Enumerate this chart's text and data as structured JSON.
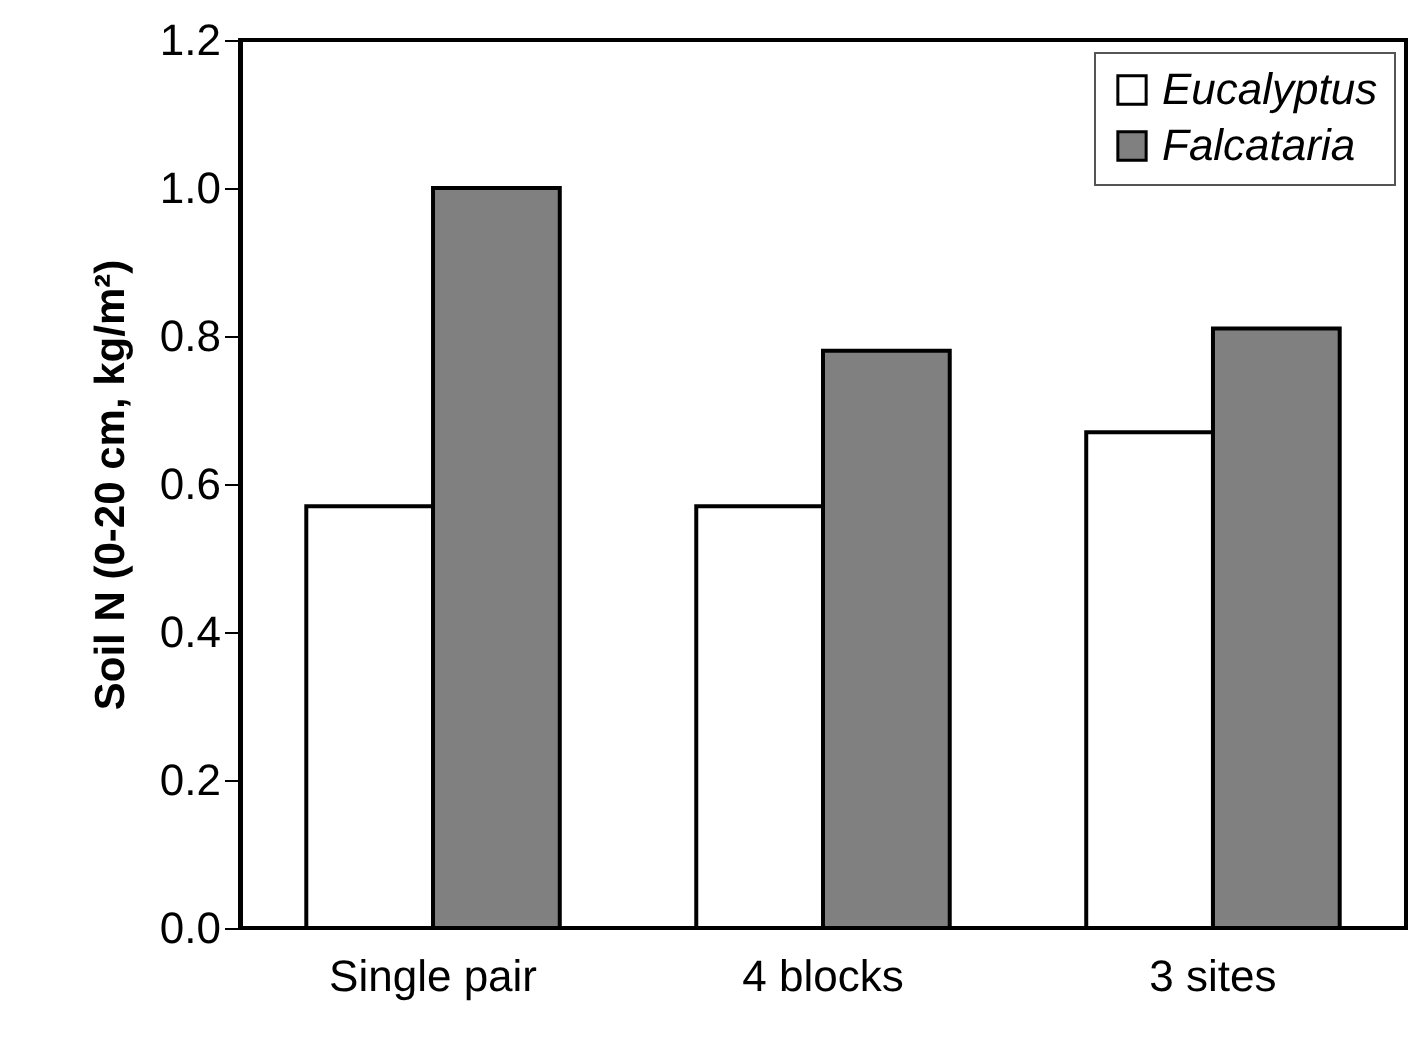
{
  "chart_data": {
    "type": "bar",
    "ylabel": "Soil N (0-20 cm, kg/m²)",
    "categories": [
      "Single pair",
      "4 blocks",
      "3 sites"
    ],
    "series": [
      {
        "name": "Eucalyptus",
        "color": "#ffffff",
        "values": [
          0.57,
          0.57,
          0.67
        ]
      },
      {
        "name": "Falcataria",
        "color": "#808080",
        "values": [
          1.0,
          0.78,
          0.81
        ]
      }
    ],
    "ylim": [
      0,
      1.2
    ],
    "yticks": [
      {
        "value": 0,
        "label": "0.0"
      },
      {
        "value": 0.2,
        "label": "0.2"
      },
      {
        "value": 0.4,
        "label": "0.4"
      },
      {
        "value": 0.6,
        "label": "0.6"
      },
      {
        "value": 0.8,
        "label": "0.8"
      },
      {
        "value": 1,
        "label": "1.0"
      },
      {
        "value": 1.2,
        "label": "1.2"
      }
    ],
    "grid": false,
    "legend": "top right"
  }
}
